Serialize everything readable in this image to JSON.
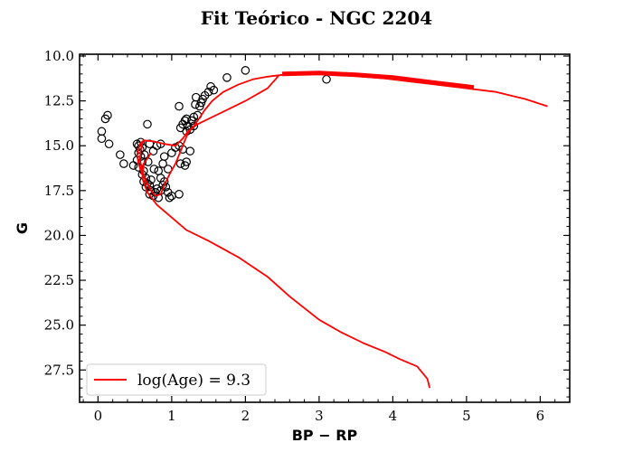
{
  "chart_data": {
    "type": "scatter",
    "title": "Fit Teórico - NGC 2204",
    "xlabel": "BP − RP",
    "ylabel": "G",
    "xlim": [
      -0.25,
      6.4
    ],
    "ylim": [
      29.3,
      9.9
    ],
    "y_inverted": true,
    "xticks": [
      0,
      1,
      2,
      3,
      4,
      5,
      6
    ],
    "xtick_labels": [
      "0",
      "1",
      "2",
      "3",
      "4",
      "5",
      "6"
    ],
    "yticks": [
      10.0,
      12.5,
      15.0,
      17.5,
      20.0,
      22.5,
      25.0,
      27.5
    ],
    "ytick_labels": [
      "10.0",
      "12.5",
      "15.0",
      "17.5",
      "20.0",
      "22.5",
      "25.0",
      "27.5"
    ],
    "grid": false,
    "legend": {
      "location": "lower-left",
      "entries": [
        "log(Age) = 9.3"
      ]
    },
    "series": [
      {
        "name": "",
        "kind": "scatter",
        "marker": "open-circle",
        "color": "#000000",
        "points": [
          [
            0.05,
            14.2
          ],
          [
            0.05,
            14.6
          ],
          [
            0.1,
            13.5
          ],
          [
            0.13,
            13.3
          ],
          [
            0.15,
            14.9
          ],
          [
            0.3,
            15.5
          ],
          [
            0.35,
            16.0
          ],
          [
            0.48,
            16.1
          ],
          [
            0.53,
            14.9
          ],
          [
            0.55,
            15.0
          ],
          [
            0.57,
            15.2
          ],
          [
            0.55,
            15.4
          ],
          [
            0.58,
            15.6
          ],
          [
            0.53,
            15.8
          ],
          [
            0.6,
            15.9
          ],
          [
            0.55,
            16.2
          ],
          [
            0.62,
            16.4
          ],
          [
            0.6,
            16.6
          ],
          [
            0.65,
            16.8
          ],
          [
            0.62,
            17.0
          ],
          [
            0.67,
            17.1
          ],
          [
            0.7,
            17.2
          ],
          [
            0.65,
            17.3
          ],
          [
            0.72,
            17.5
          ],
          [
            0.7,
            17.7
          ],
          [
            0.75,
            17.8
          ],
          [
            0.78,
            17.6
          ],
          [
            0.8,
            17.4
          ],
          [
            0.82,
            17.9
          ],
          [
            0.85,
            17.5
          ],
          [
            0.88,
            17.2
          ],
          [
            0.9,
            17.0
          ],
          [
            0.92,
            17.3
          ],
          [
            0.95,
            17.6
          ],
          [
            0.97,
            17.9
          ],
          [
            1.0,
            17.8
          ],
          [
            0.85,
            16.8
          ],
          [
            0.82,
            16.4
          ],
          [
            0.88,
            16.0
          ],
          [
            0.9,
            15.6
          ],
          [
            0.95,
            16.3
          ],
          [
            0.72,
            16.9
          ],
          [
            0.76,
            16.3
          ],
          [
            0.68,
            15.9
          ],
          [
            0.63,
            15.5
          ],
          [
            0.6,
            15.1
          ],
          [
            0.58,
            14.8
          ],
          [
            0.67,
            13.8
          ],
          [
            0.7,
            14.9
          ],
          [
            0.75,
            15.3
          ],
          [
            0.8,
            15.0
          ],
          [
            0.85,
            14.9
          ],
          [
            1.0,
            15.4
          ],
          [
            1.05,
            15.1
          ],
          [
            1.1,
            15.0
          ],
          [
            1.15,
            15.2
          ],
          [
            1.12,
            16.0
          ],
          [
            1.18,
            16.1
          ],
          [
            1.25,
            15.3
          ],
          [
            1.2,
            15.9
          ],
          [
            1.1,
            17.7
          ],
          [
            1.12,
            14.0
          ],
          [
            1.15,
            13.8
          ],
          [
            1.18,
            13.6
          ],
          [
            1.2,
            13.5
          ],
          [
            1.2,
            14.2
          ],
          [
            1.22,
            13.9
          ],
          [
            1.25,
            14.1
          ],
          [
            1.27,
            13.6
          ],
          [
            1.3,
            13.4
          ],
          [
            1.3,
            13.9
          ],
          [
            1.35,
            13.3
          ],
          [
            1.32,
            12.7
          ],
          [
            1.4,
            12.6
          ],
          [
            1.42,
            12.4
          ],
          [
            1.45,
            12.2
          ],
          [
            1.5,
            12.0
          ],
          [
            1.53,
            11.7
          ],
          [
            1.57,
            11.9
          ],
          [
            1.75,
            11.2
          ],
          [
            2.0,
            10.8
          ],
          [
            1.1,
            12.8
          ],
          [
            1.33,
            12.3
          ],
          [
            1.38,
            12.8
          ],
          [
            3.1,
            11.3
          ]
        ]
      },
      {
        "name": "log(Age) = 9.3",
        "kind": "line",
        "color": "#ff0000",
        "segments": [
          [
            [
              0.62,
              14.7
            ],
            [
              0.6,
              14.9
            ],
            [
              0.58,
              15.3
            ],
            [
              0.57,
              15.8
            ],
            [
              0.6,
              16.4
            ],
            [
              0.65,
              17.0
            ],
            [
              0.72,
              17.5
            ],
            [
              0.78,
              17.8
            ],
            [
              0.85,
              17.7
            ],
            [
              0.9,
              17.2
            ],
            [
              0.97,
              16.6
            ],
            [
              1.05,
              16.0
            ],
            [
              1.12,
              15.3
            ],
            [
              1.17,
              14.8
            ],
            [
              1.22,
              14.3
            ],
            [
              1.3,
              13.9
            ],
            [
              1.37,
              13.5
            ],
            [
              1.45,
              13.0
            ],
            [
              1.55,
              12.5
            ],
            [
              1.7,
              12.0
            ],
            [
              1.9,
              11.6
            ],
            [
              2.1,
              11.3
            ],
            [
              2.3,
              11.15
            ],
            [
              2.5,
              11.05
            ],
            [
              2.7,
              11.0
            ],
            [
              3.0,
              11.0
            ],
            [
              3.3,
              11.05
            ],
            [
              3.6,
              11.15
            ],
            [
              3.9,
              11.25
            ],
            [
              4.2,
              11.4
            ],
            [
              4.5,
              11.55
            ],
            [
              4.8,
              11.7
            ],
            [
              5.1,
              11.85
            ],
            [
              5.4,
              12.0
            ],
            [
              5.8,
              12.4
            ],
            [
              6.1,
              12.8
            ]
          ],
          [
            [
              2.45,
              11.1
            ],
            [
              2.3,
              11.8
            ],
            [
              2.0,
              12.5
            ],
            [
              1.6,
              13.3
            ],
            [
              1.35,
              13.8
            ],
            [
              1.22,
              14.2
            ],
            [
              1.15,
              14.6
            ],
            [
              1.05,
              15.0
            ],
            [
              0.9,
              14.9
            ],
            [
              0.75,
              14.75
            ],
            [
              0.62,
              14.7
            ],
            [
              0.57,
              14.9
            ],
            [
              0.53,
              15.5
            ],
            [
              0.55,
              16.0
            ],
            [
              0.6,
              16.6
            ],
            [
              0.67,
              17.1
            ],
            [
              0.72,
              17.5
            ]
          ],
          [
            [
              0.72,
              15.4
            ],
            [
              0.62,
              16.0
            ],
            [
              0.6,
              16.8
            ],
            [
              0.67,
              17.6
            ],
            [
              0.8,
              18.3
            ],
            [
              1.0,
              19.0
            ],
            [
              1.2,
              19.7
            ],
            [
              1.5,
              20.3
            ],
            [
              1.9,
              21.2
            ],
            [
              2.3,
              22.3
            ],
            [
              2.6,
              23.4
            ],
            [
              3.0,
              24.7
            ],
            [
              3.3,
              25.4
            ],
            [
              3.6,
              26.0
            ],
            [
              3.9,
              26.5
            ],
            [
              4.1,
              26.9
            ],
            [
              4.33,
              27.3
            ],
            [
              4.47,
              28.0
            ],
            [
              4.5,
              28.5
            ]
          ]
        ]
      }
    ]
  }
}
